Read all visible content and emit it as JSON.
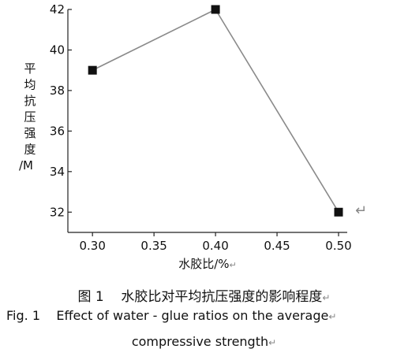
{
  "chart_data": {
    "type": "line",
    "x": [
      0.3,
      0.4,
      0.5
    ],
    "values": [
      39,
      42,
      32
    ],
    "xticks": [
      "0.30",
      "0.35",
      "0.40",
      "0.45",
      "0.50"
    ],
    "yticks": [
      "32",
      "34",
      "36",
      "38",
      "40",
      "42"
    ],
    "xlim": [
      0.28,
      0.5
    ],
    "ylim": [
      31,
      42
    ],
    "xlabel": "水胶比/%",
    "ylabel": "平均抗压强度/M",
    "marker": "square",
    "line_color": "#8a8a8a",
    "marker_color": "#111111",
    "grid": false
  },
  "caption": {
    "cn_number": "图 1",
    "cn_text": "水胶比对平均抗压强度的影响程度",
    "en_number": "Fig. 1",
    "en_text_line1": "Effect of water - glue ratios on the average",
    "en_text_line2": "compressive strength"
  },
  "return_mark": "↵"
}
